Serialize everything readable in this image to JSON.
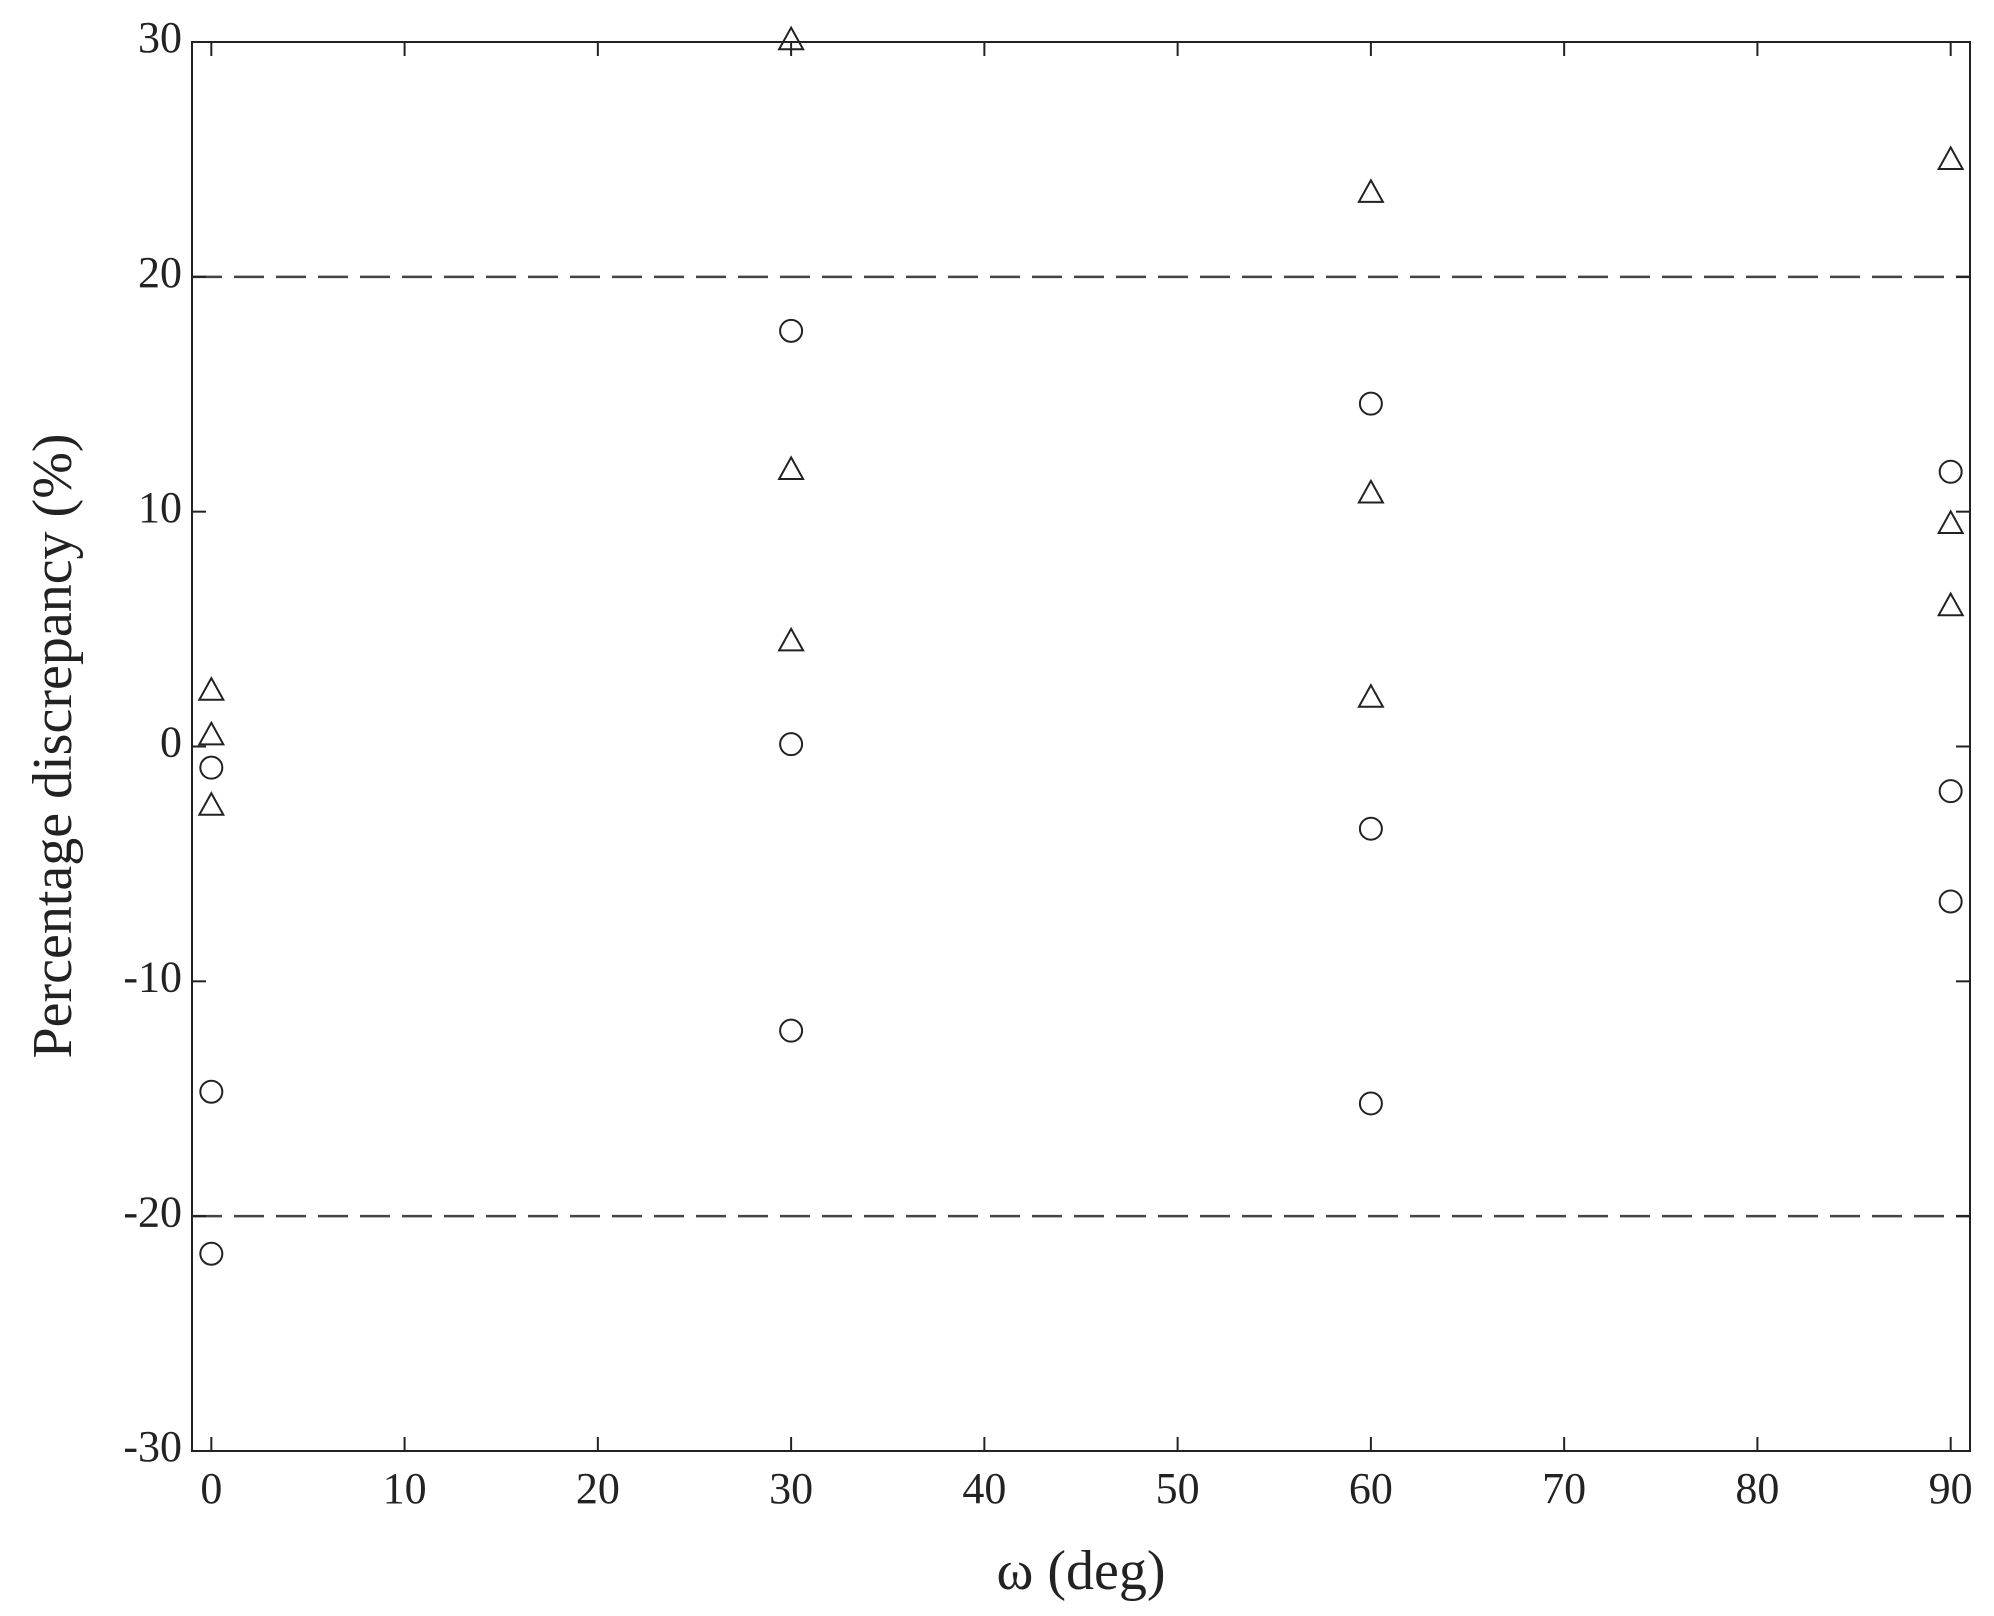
{
  "chart_data": {
    "type": "scatter",
    "xlabel": "ω (deg)",
    "ylabel": "Percentage discrepancy (%)",
    "xlim": [
      -1,
      91
    ],
    "ylim": [
      -30,
      30
    ],
    "xticks": [
      0,
      10,
      20,
      30,
      40,
      50,
      60,
      70,
      80,
      90
    ],
    "yticks": [
      -30,
      -20,
      -10,
      0,
      10,
      20,
      30
    ],
    "hlines": [
      20,
      -20
    ],
    "series": [
      {
        "marker": "circle",
        "color": "#222222",
        "x": [
          0,
          0,
          0,
          30,
          30,
          30,
          60,
          60,
          60,
          90,
          90,
          90
        ],
        "values": [
          -0.9,
          -14.7,
          -21.6,
          17.7,
          0.1,
          -12.1,
          14.6,
          -3.5,
          -15.2,
          11.7,
          -1.9,
          -6.6
        ]
      },
      {
        "marker": "triangle",
        "color": "#222222",
        "x": [
          0,
          0,
          0,
          30,
          30,
          30,
          60,
          60,
          60,
          90,
          90,
          90
        ],
        "values": [
          2.4,
          0.5,
          -2.5,
          30.1,
          11.8,
          4.5,
          23.6,
          10.8,
          2.1,
          25.0,
          9.5,
          6.0
        ]
      }
    ]
  }
}
